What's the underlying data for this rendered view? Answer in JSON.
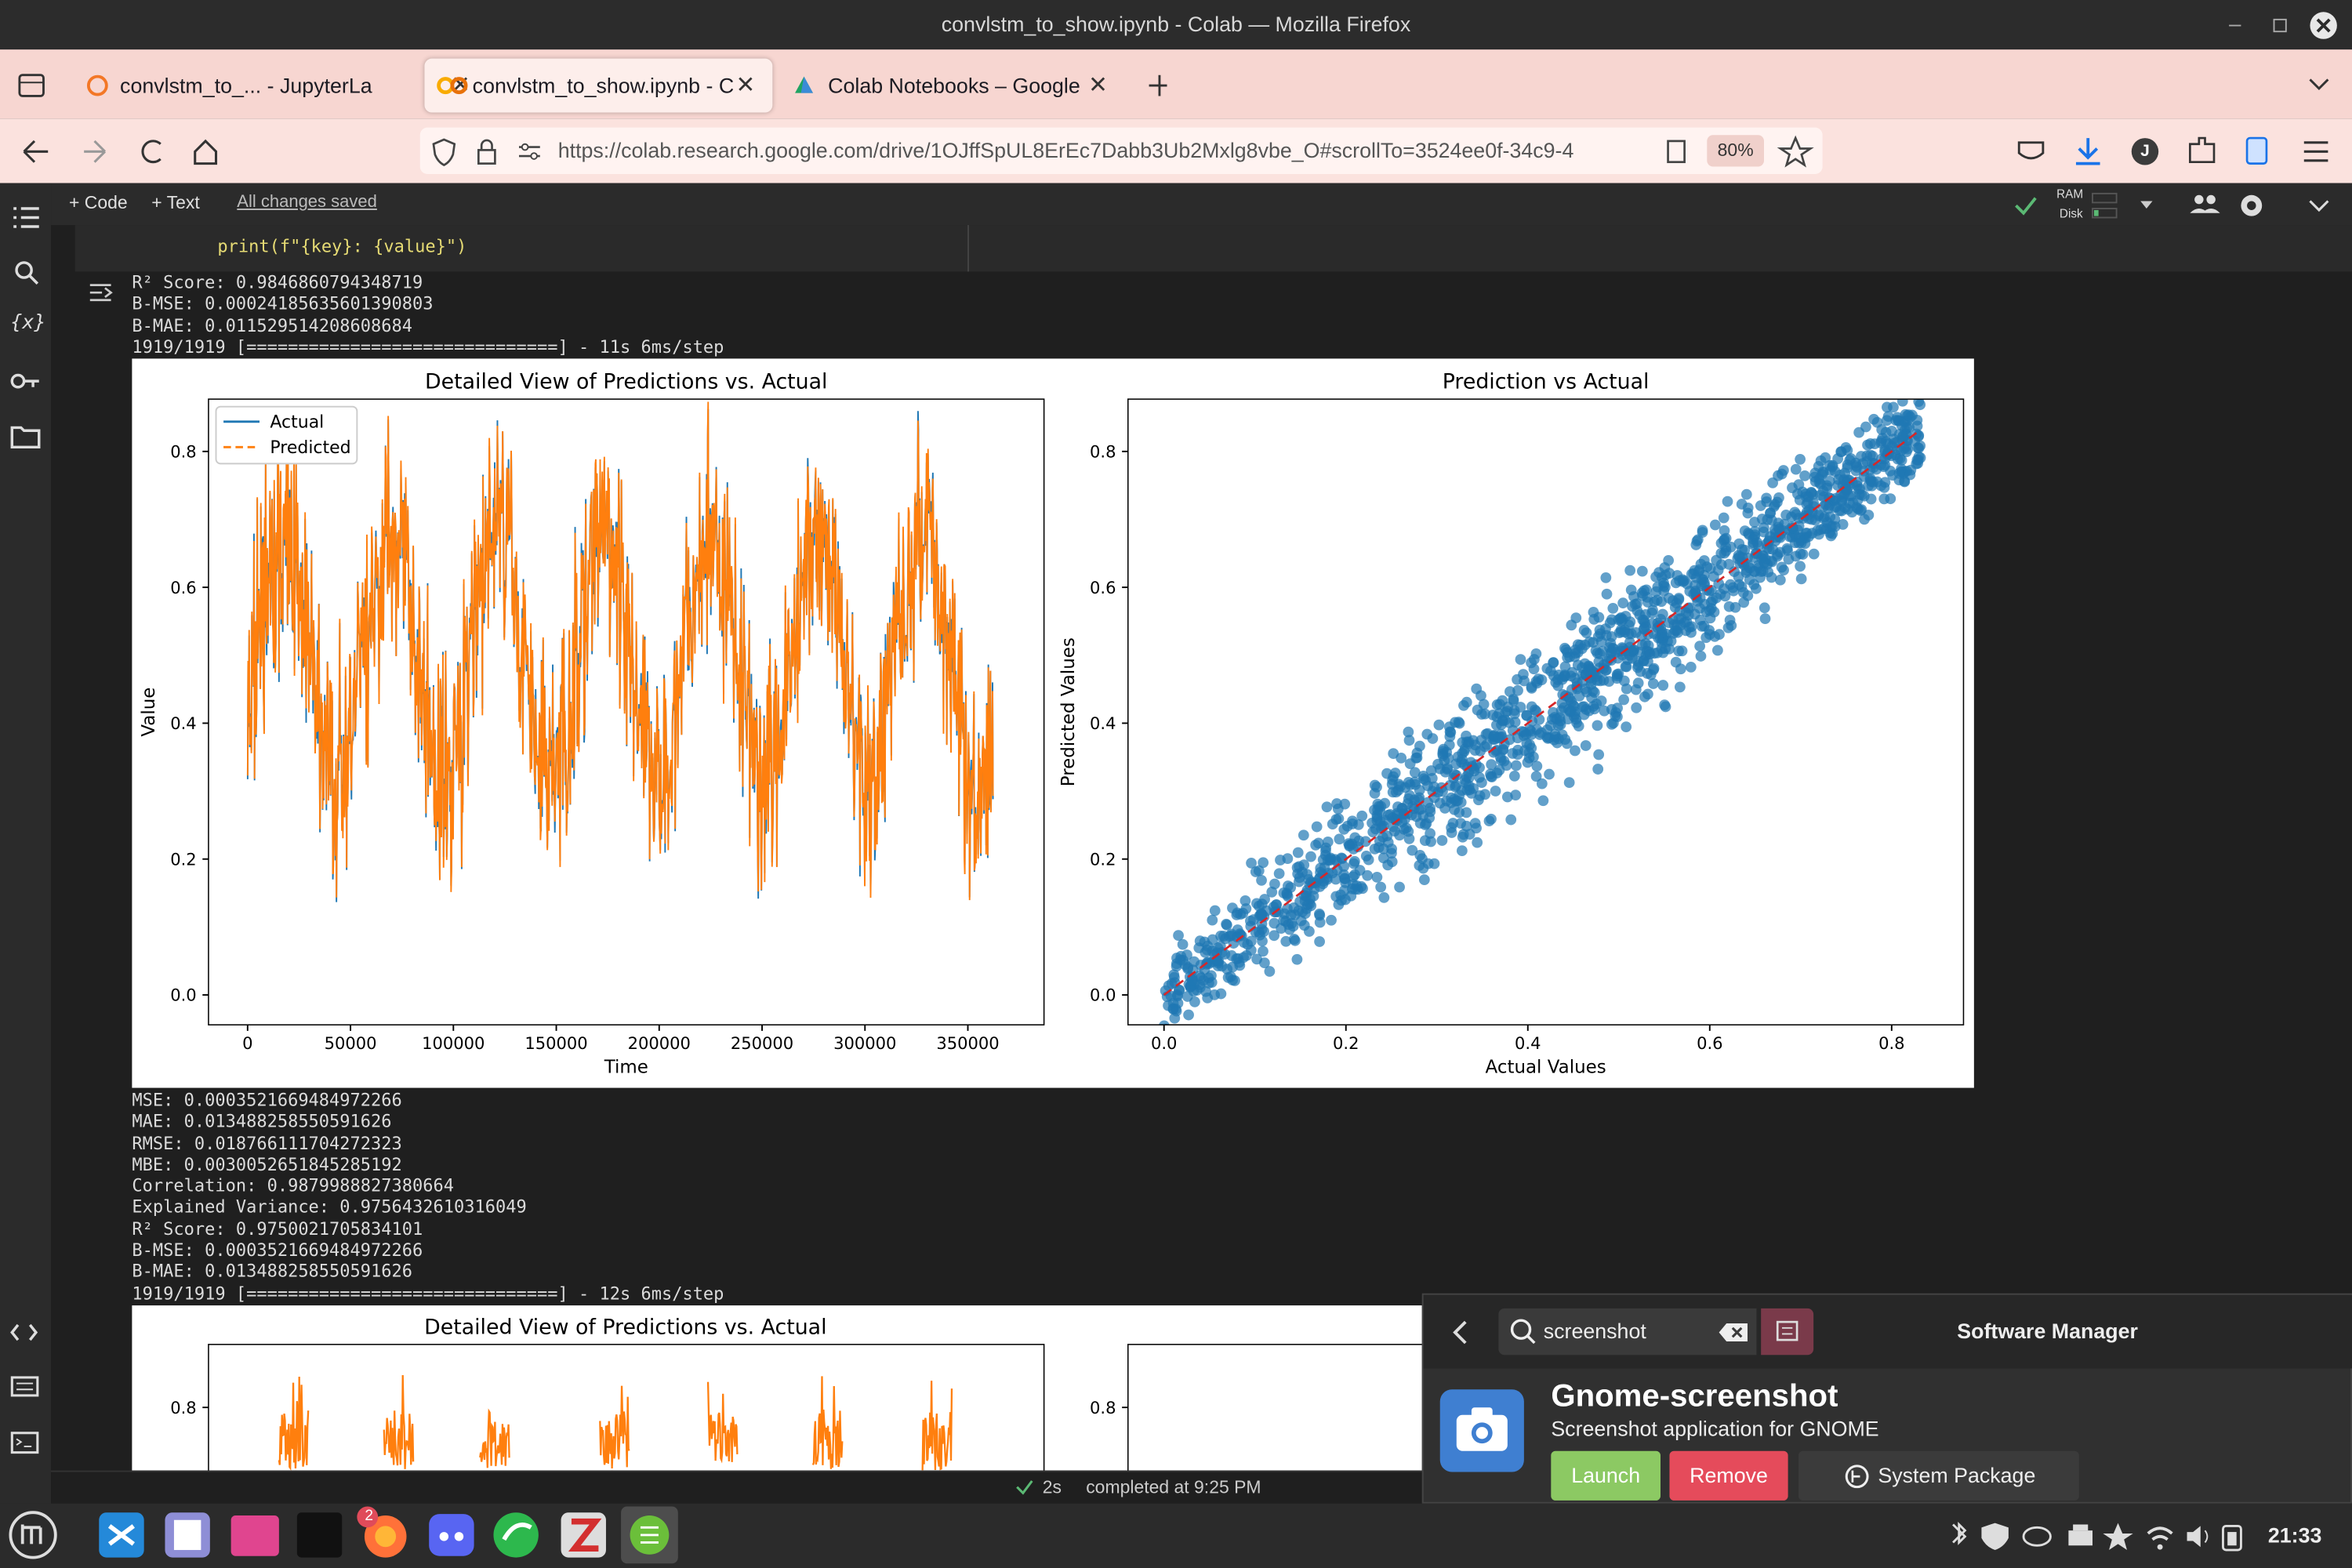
{
  "window": {
    "title": "convlstm_to_show.ipynb - Colab — Mozilla Firefox"
  },
  "tabs": [
    "convlstm_to_... - JupyterLa",
    "convlstm_to_show.ipynb - C",
    "Colab Notebooks – Google"
  ],
  "address_bar": {
    "url": "https://colab.research.google.com/drive/1OJffSpUL8ErEc7Dabb3Ub2Mxlg8vbe_O#scrollTo=3524ee0f-34c9-4",
    "zoom": "80%",
    "profile": "J"
  },
  "toolbar": {
    "code": "+ Code",
    "text": "+ Text",
    "saved": "All changes saved",
    "ram": "RAM",
    "disk": "Disk"
  },
  "sidebar": {
    "variables": "{x}"
  },
  "code_lines": [
    "print(f\"{key}: {value}\")"
  ],
  "output_1": [
    "R² Score: 0.9846860794348719",
    "B-MSE: 0.00024185635601390803",
    "B-MAE: 0.011529514208608684",
    "1919/1919 [==============================] - 11s 6ms/step"
  ],
  "plots": [
    {
      "title": "Detailed View of Predictions vs. Actual",
      "xlabel": "Time",
      "ylabel": "Value",
      "legend": [
        "Actual",
        "Predicted"
      ],
      "xlim": [
        -19000,
        387000
      ],
      "ylim": [
        -0.044,
        0.877
      ],
      "xticks": [
        0,
        50000,
        100000,
        150000,
        200000,
        250000,
        300000,
        350000
      ],
      "yticks": [
        {
          "value": 0,
          "label": "0.0"
        },
        {
          "value": 0.2,
          "label": "0.2"
        },
        {
          "value": 0.4,
          "label": "0.4"
        },
        {
          "value": 0.6,
          "label": "0.6"
        },
        {
          "value": 0.8,
          "label": "0.8"
        }
      ]
    },
    {
      "title": "Prediction vs Actual",
      "xlabel": "Actual Values",
      "ylabel": "Predicted Values",
      "xlim": [
        -0.0396,
        0.879
      ],
      "ylim": [
        -0.044,
        0.877
      ],
      "xticks": [
        {
          "value": 0,
          "label": "0.0"
        },
        {
          "value": 0.2,
          "label": "0.2"
        },
        {
          "value": 0.4,
          "label": "0.4"
        },
        {
          "value": 0.6,
          "label": "0.6"
        },
        {
          "value": 0.8,
          "label": "0.8"
        }
      ],
      "yticks": [
        {
          "value": 0,
          "label": "0.0"
        },
        {
          "value": 0.2,
          "label": "0.2"
        },
        {
          "value": 0.4,
          "label": "0.4"
        },
        {
          "value": 0.6,
          "label": "0.6"
        },
        {
          "value": 0.8,
          "label": "0.8"
        }
      ]
    }
  ],
  "output_2": [
    "MSE: 0.0003521669484972266",
    "MAE: 0.013488258550591626",
    "RMSE: 0.018766111704272323",
    "MBE: 0.0030052651845285192",
    "Correlation: 0.9879988827380664",
    "Explained Variance: 0.9756432610316049",
    "R² Score: 0.9750021705834101",
    "B-MSE: 0.0003521669484972266",
    "B-MAE: 0.013488258550591626",
    "1919/1919 [==============================] - 12s 6ms/step"
  ],
  "plots_2": {
    "title": "Detailed View of Predictions vs. Actual",
    "ytick_left": "0.8",
    "ytick_right": "0.8"
  },
  "status": {
    "duration": "2s",
    "completed": "completed at 9:25 PM"
  },
  "software_manager": {
    "search": "screenshot",
    "title": "Software Manager",
    "app_name": "Gnome-screenshot",
    "app_desc": "Screenshot application for GNOME",
    "launch": "Launch",
    "remove": "Remove",
    "package": "System Package"
  },
  "taskbar": {
    "badge": "2",
    "time": "21:33"
  }
}
